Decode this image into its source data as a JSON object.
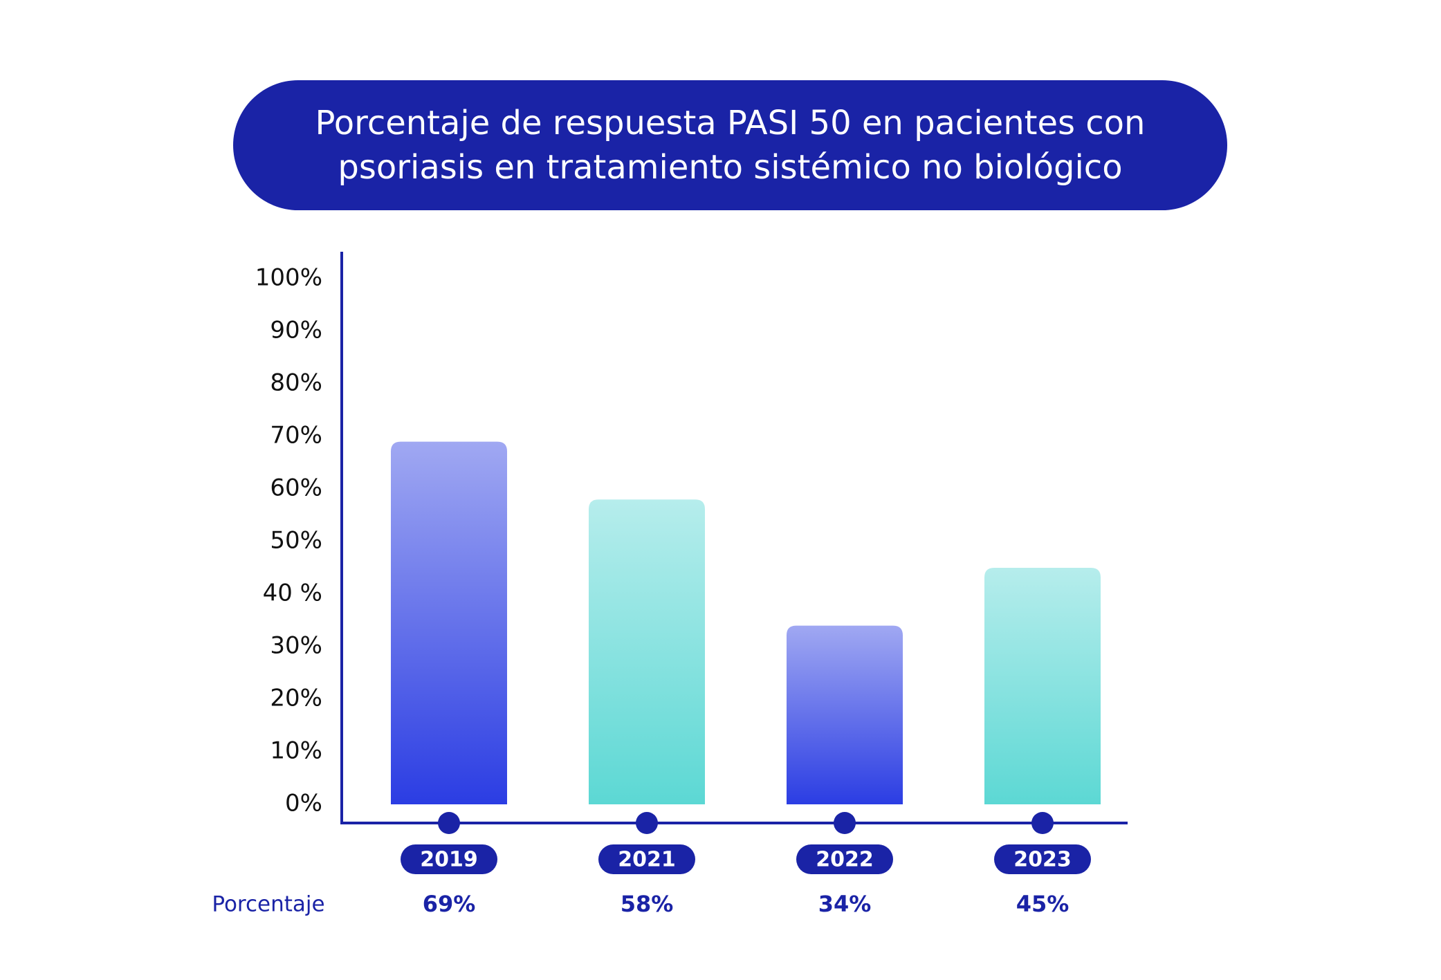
{
  "chart_data": {
    "type": "bar",
    "title": "Porcentaje de respuesta PASI 50 en pacientes con psoriasis en tratamiento sistémico no biológico",
    "categories": [
      "2019",
      "2021",
      "2022",
      "2023"
    ],
    "values": [
      69,
      58,
      34,
      45
    ],
    "value_labels": [
      "69%",
      "58%",
      "34%",
      "45%"
    ],
    "row_label": "Porcentaje",
    "colors": [
      "#2b3de3",
      "#5cd8d4",
      "#2b3de3",
      "#5cd8d4"
    ],
    "ylim": [
      0,
      100
    ],
    "yticks": [
      {
        "value": 0,
        "label": "0%"
      },
      {
        "value": 10,
        "label": "10%"
      },
      {
        "value": 20,
        "label": "20%"
      },
      {
        "value": 30,
        "label": "30%"
      },
      {
        "value": 40,
        "label": "40 %"
      },
      {
        "value": 50,
        "label": "50%"
      },
      {
        "value": 60,
        "label": "60%"
      },
      {
        "value": 70,
        "label": "70%"
      },
      {
        "value": 80,
        "label": "80%"
      },
      {
        "value": 90,
        "label": "90%"
      },
      {
        "value": 100,
        "label": "100%"
      }
    ],
    "grid": false
  }
}
